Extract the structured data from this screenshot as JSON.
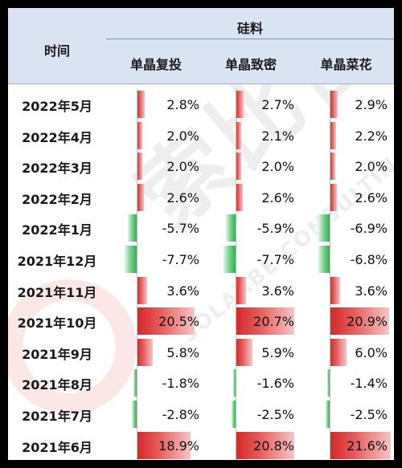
{
  "header": {
    "time_label": "时间",
    "group_label": "硅料",
    "columns": [
      "单晶复投",
      "单晶致密",
      "单晶菜花"
    ]
  },
  "colors": {
    "positive": "#d32727",
    "negative": "#2db24e",
    "header_bg": "#d9e3f1"
  },
  "watermark": {
    "brand": "索比咨询",
    "sub": "SOLARBE CONSULTING"
  },
  "rows": [
    {
      "label": "2022年5月",
      "values": [
        "2.8%",
        "2.7%",
        "2.9%"
      ],
      "nums": [
        2.8,
        2.7,
        2.9
      ]
    },
    {
      "label": "2022年4月",
      "values": [
        "2.0%",
        "2.1%",
        "2.2%"
      ],
      "nums": [
        2.0,
        2.1,
        2.2
      ]
    },
    {
      "label": "2022年3月",
      "values": [
        "2.0%",
        "2.0%",
        "2.0%"
      ],
      "nums": [
        2.0,
        2.0,
        2.0
      ]
    },
    {
      "label": "2022年2月",
      "values": [
        "2.6%",
        "2.6%",
        "2.6%"
      ],
      "nums": [
        2.6,
        2.6,
        2.6
      ]
    },
    {
      "label": "2022年1月",
      "values": [
        "-5.7%",
        "-5.9%",
        "-6.9%"
      ],
      "nums": [
        -5.7,
        -5.9,
        -6.9
      ]
    },
    {
      "label": "2021年12月",
      "values": [
        "-7.7%",
        "-7.7%",
        "-6.8%"
      ],
      "nums": [
        -7.7,
        -7.7,
        -6.8
      ]
    },
    {
      "label": "2021年11月",
      "values": [
        "3.6%",
        "3.6%",
        "3.6%"
      ],
      "nums": [
        3.6,
        3.6,
        3.6
      ]
    },
    {
      "label": "2021年10月",
      "values": [
        "20.5%",
        "20.7%",
        "20.9%"
      ],
      "nums": [
        20.5,
        20.7,
        20.9
      ]
    },
    {
      "label": "2021年9月",
      "values": [
        "5.8%",
        "5.9%",
        "6.0%"
      ],
      "nums": [
        5.8,
        5.9,
        6.0
      ]
    },
    {
      "label": "2021年8月",
      "values": [
        "-1.8%",
        "-1.6%",
        "-1.4%"
      ],
      "nums": [
        -1.8,
        -1.6,
        -1.4
      ]
    },
    {
      "label": "2021年7月",
      "values": [
        "-2.8%",
        "-2.5%",
        "-2.5%"
      ],
      "nums": [
        -2.8,
        -2.5,
        -2.5
      ]
    },
    {
      "label": "2021年6月",
      "values": [
        "18.9%",
        "20.8%",
        "21.6%"
      ],
      "nums": [
        18.9,
        20.8,
        21.6
      ]
    }
  ]
}
